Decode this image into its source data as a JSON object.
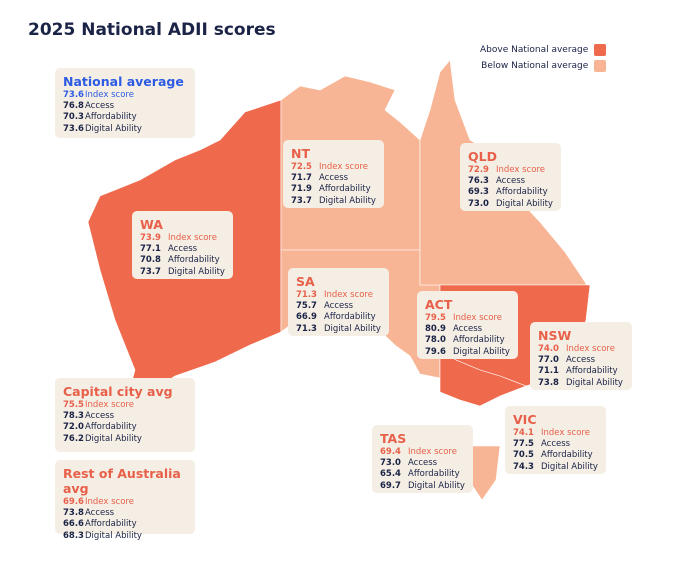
{
  "title": "2025 National ADII scores",
  "legend": [
    {
      "label": "Above National average",
      "color": "#ef6a4c"
    },
    {
      "label": "Below National average",
      "color": "#f8b595"
    }
  ],
  "labels": [
    "Index score",
    "Access",
    "Affordability",
    "Digital Ability"
  ],
  "summaries": [
    {
      "name": "National average",
      "values": [
        "73.6",
        "76.8",
        "70.3",
        "73.6"
      ]
    },
    {
      "name": "Capital city avg",
      "values": [
        "75.5",
        "78.3",
        "72.0",
        "76.2"
      ]
    },
    {
      "name": "Rest of Australia avg",
      "values": [
        "69.6",
        "73.8",
        "66.6",
        "68.3"
      ]
    }
  ],
  "regions": [
    {
      "name": "WA",
      "color": "#ef6a4c",
      "values": [
        "73.9",
        "77.1",
        "70.8",
        "73.7"
      ]
    },
    {
      "name": "NT",
      "color": "#f8b595",
      "values": [
        "72.5",
        "71.7",
        "71.9",
        "73.7"
      ]
    },
    {
      "name": "SA",
      "color": "#f8b595",
      "values": [
        "71.3",
        "75.7",
        "66.9",
        "71.3"
      ]
    },
    {
      "name": "QLD",
      "color": "#f8b595",
      "values": [
        "72.9",
        "76.3",
        "69.3",
        "73.0"
      ]
    },
    {
      "name": "NSW",
      "color": "#ef6a4c",
      "values": [
        "74.0",
        "77.0",
        "71.1",
        "73.8"
      ]
    },
    {
      "name": "ACT",
      "color": "#ef6a4c",
      "values": [
        "79.5",
        "80.9",
        "78.0",
        "79.6"
      ]
    },
    {
      "name": "VIC",
      "color": "#ef6a4c",
      "values": [
        "74.1",
        "77.5",
        "70.5",
        "74.3"
      ]
    },
    {
      "name": "TAS",
      "color": "#f8b595",
      "values": [
        "69.4",
        "73.0",
        "65.4",
        "69.7"
      ]
    }
  ]
}
